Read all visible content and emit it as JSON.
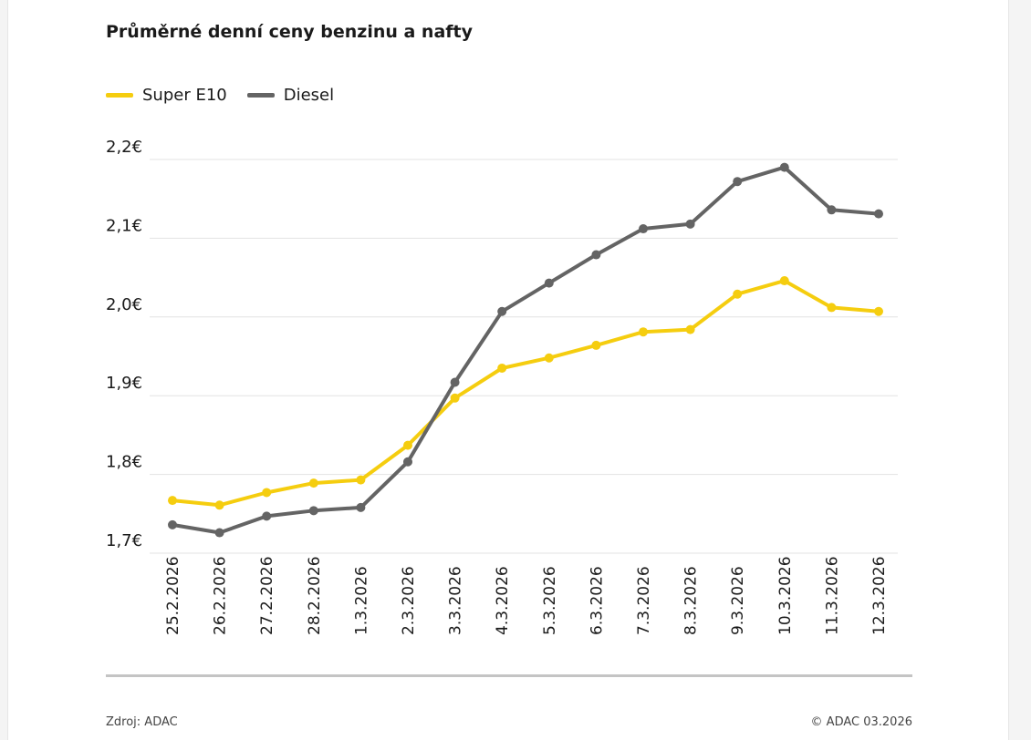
{
  "title": "Průměrné denní ceny benzinu a nafty",
  "source": "Zdroj: ADAC",
  "copyright": "© ADAC 03.2026",
  "chart_data": {
    "type": "line",
    "title": "Průměrné denní ceny benzinu a nafty",
    "xlabel": "",
    "ylabel": "",
    "x": [
      "25.2.2026",
      "26.2.2026",
      "27.2.2026",
      "28.2.2026",
      "1.3.2026",
      "2.3.2026",
      "3.3.2026",
      "4.3.2026",
      "5.3.2026",
      "6.3.2026",
      "7.3.2026",
      "8.3.2026",
      "9.3.2026",
      "10.3.2026",
      "11.3.2026",
      "12.3.2026"
    ],
    "ylim": [
      1.7,
      2.2
    ],
    "yticks": [
      1.7,
      1.8,
      1.9,
      2.0,
      2.1,
      2.2
    ],
    "ytick_labels": [
      "1,7€",
      "1,8€",
      "1,9€",
      "2,0€",
      "2,1€",
      "2,2€"
    ],
    "grid": true,
    "legend": "top-left",
    "series": [
      {
        "name": "Super E10",
        "color": "#f5cd0f",
        "values": [
          1.767,
          1.761,
          1.777,
          1.789,
          1.793,
          1.837,
          1.897,
          1.935,
          1.948,
          1.964,
          1.981,
          1.984,
          2.029,
          2.046,
          2.012,
          2.007
        ]
      },
      {
        "name": "Diesel",
        "color": "#646464",
        "values": [
          1.736,
          1.726,
          1.747,
          1.754,
          1.758,
          1.816,
          1.917,
          2.007,
          2.043,
          2.079,
          2.112,
          2.118,
          2.172,
          2.19,
          2.136,
          2.131
        ]
      }
    ]
  }
}
